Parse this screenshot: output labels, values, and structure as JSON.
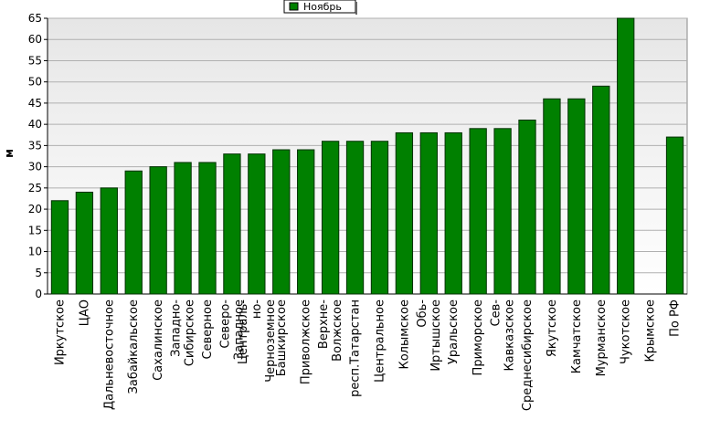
{
  "chart_data": {
    "type": "bar",
    "y_label": "м",
    "categories": [
      "Иркутское",
      "ЦАО",
      "Дальневосточное",
      "Забайкальское",
      "Сахалинское",
      "Западно-\nСибирское",
      "Северное",
      "Северо-\nЗападное",
      "Централь-\nно-\nЧерноземное",
      "Башкирское",
      "Приволжское",
      "Верхне-\nВолжское",
      "респ.Татарстан",
      "Центральное",
      "Колымское",
      "Обь-\nИртышское",
      "Уральское",
      "Приморское",
      "Сев-\nКавказское",
      "Среднесибирское",
      "Якутское",
      "Камчатское",
      "Мурманское",
      "Чукотское",
      "Крымское",
      "По РФ"
    ],
    "series": [
      {
        "name": "Ноябрь",
        "color": "#008000",
        "values": [
          22,
          24,
          25,
          29,
          30,
          31,
          31,
          33,
          33,
          34,
          34,
          36,
          36,
          36,
          38,
          38,
          38,
          39,
          39,
          41,
          46,
          46,
          49,
          65,
          null,
          37
        ]
      }
    ],
    "ylim": [
      0,
      65
    ],
    "yticks": [
      0,
      5,
      10,
      15,
      20,
      25,
      30,
      35,
      40,
      45,
      50,
      55,
      60,
      65
    ],
    "grid": true,
    "legend": "top"
  }
}
